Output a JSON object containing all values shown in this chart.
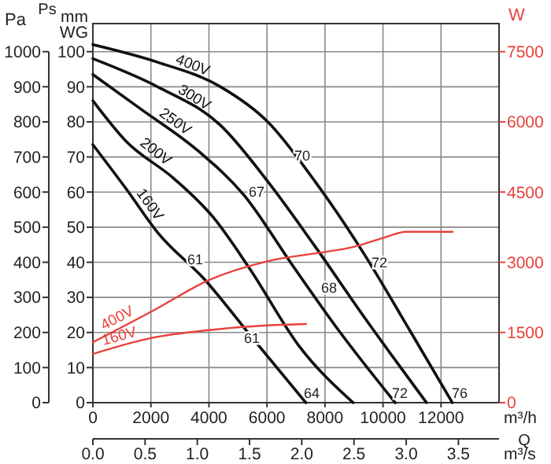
{
  "chart_data": {
    "type": "line",
    "xlabel": "m³/h",
    "ylabel": "Pa",
    "y2label": "mm WG",
    "y3label": "W",
    "x2label": "m³/s",
    "xlim": [
      0,
      14000
    ],
    "xticks": [
      0,
      2000,
      4000,
      6000,
      8000,
      10000,
      12000
    ],
    "x2lim": [
      0,
      3.889
    ],
    "x2ticks": [
      {
        "value": 0,
        "label": "0.0"
      },
      {
        "value": 0.5,
        "label": "0.5"
      },
      {
        "value": 1,
        "label": "1.0"
      },
      {
        "value": 1.5,
        "label": "1.5"
      },
      {
        "value": 2,
        "label": "2.0"
      },
      {
        "value": 2.5,
        "label": "2.5"
      },
      {
        "value": 3,
        "label": "3.0"
      },
      {
        "value": 3.5,
        "label": "3.5"
      }
    ],
    "ylim": [
      0,
      1080
    ],
    "yticks": [
      0,
      100,
      200,
      300,
      400,
      500,
      600,
      700,
      800,
      900,
      1000
    ],
    "y2lim": [
      0,
      108
    ],
    "y2ticks": [
      0,
      10,
      20,
      30,
      40,
      50,
      60,
      70,
      80,
      90,
      100
    ],
    "y3lim": [
      0,
      8100
    ],
    "y3ticks": [
      0,
      1500,
      3000,
      4500,
      6000,
      7500
    ],
    "grid": true,
    "series": [
      {
        "name": "400V",
        "color": "#111111",
        "x": [
          0,
          2230,
          4400,
          6030,
          7660,
          9300,
          10930,
          12390
        ],
        "values": [
          1020,
          970,
          900,
          800,
          630,
          430,
          205,
          0
        ]
      },
      {
        "name": "300V",
        "color": "#111111",
        "x": [
          0,
          2230,
          4400,
          6030,
          7660,
          9300,
          11500
        ],
        "values": [
          980,
          900,
          790,
          630,
          445,
          250,
          0
        ]
      },
      {
        "name": "250V",
        "color": "#111111",
        "x": [
          0,
          1680,
          3590,
          5220,
          6850,
          8480,
          10420
        ],
        "values": [
          935,
          835,
          720,
          590,
          395,
          205,
          0
        ]
      },
      {
        "name": "200V",
        "color": "#111111",
        "x": [
          0,
          1140,
          2770,
          4130,
          5380,
          7120,
          8970
        ],
        "values": [
          860,
          745,
          640,
          530,
          385,
          160,
          0
        ]
      },
      {
        "name": "160V",
        "color": "#111111",
        "x": [
          0,
          1140,
          2230,
          3860,
          5490,
          7340
        ],
        "values": [
          735,
          610,
          485,
          350,
          185,
          0
        ]
      },
      {
        "name": "400V",
        "color": "#e8413c",
        "axis": "y3",
        "x": [
          0,
          2000,
          4000,
          6000,
          8000,
          9000,
          10000,
          10800,
          12400
        ],
        "values": [
          1290,
          1940,
          2620,
          3020,
          3220,
          3330,
          3520,
          3650,
          3650
        ]
      },
      {
        "name": "160V",
        "color": "#e8413c",
        "axis": "y3",
        "x": [
          0,
          2000,
          4000,
          6000,
          7350
        ],
        "values": [
          1040,
          1380,
          1550,
          1650,
          1680
        ]
      }
    ],
    "annotations": [
      "Ps",
      "Q",
      "70",
      "67",
      "61",
      "61",
      "68",
      "72",
      "64",
      "72",
      "76"
    ]
  }
}
